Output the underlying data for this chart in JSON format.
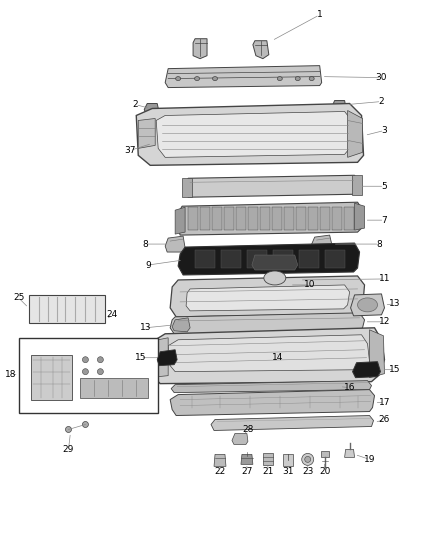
{
  "bg_color": "#ffffff",
  "fig_width": 4.38,
  "fig_height": 5.33,
  "dpi": 100,
  "line_color": "#555555",
  "label_fontsize": 6.5
}
